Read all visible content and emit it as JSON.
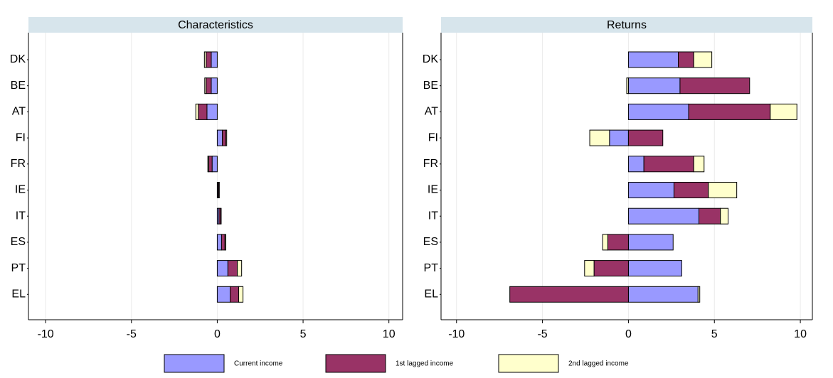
{
  "chart_data": [
    {
      "type": "bar",
      "title": "Characteristics",
      "categories": [
        "DK",
        "BE",
        "AT",
        "FI",
        "FR",
        "IE",
        "IT",
        "ES",
        "PT",
        "EL"
      ],
      "series": [
        {
          "name": "Current income",
          "color": "#9999ff",
          "values": [
            -0.35,
            -0.35,
            -0.6,
            0.3,
            -0.3,
            0.05,
            0.1,
            0.25,
            0.62,
            0.75
          ]
        },
        {
          "name": "1st lagged income",
          "color": "#993366",
          "values": [
            -0.3,
            -0.3,
            -0.5,
            0.2,
            -0.2,
            0.05,
            0.1,
            0.2,
            0.55,
            0.5
          ]
        },
        {
          "name": "2nd lagged income",
          "color": "#ffffcc",
          "values": [
            -0.1,
            -0.08,
            -0.15,
            0.05,
            -0.05,
            0.02,
            0.03,
            0.05,
            0.25,
            0.25
          ]
        }
      ],
      "xlim": [
        -11,
        10.8
      ],
      "xticks": [
        -10,
        -5,
        0,
        5,
        10
      ],
      "grid": true
    },
    {
      "type": "bar",
      "title": "Returns",
      "categories": [
        "DK",
        "BE",
        "AT",
        "FI",
        "FR",
        "IE",
        "IT",
        "ES",
        "PT",
        "EL"
      ],
      "series": [
        {
          "name": "Current income",
          "color": "#9999ff",
          "values": [
            2.9,
            3.0,
            3.5,
            -1.1,
            0.9,
            2.65,
            4.1,
            2.6,
            3.1,
            4.05
          ]
        },
        {
          "name": "1st lagged income",
          "color": "#993366",
          "values": [
            0.9,
            4.05,
            4.75,
            2.0,
            2.9,
            2.0,
            1.25,
            -1.2,
            -2.0,
            -6.9
          ]
        },
        {
          "name": "2nd lagged income",
          "color": "#ffffcc",
          "values": [
            1.05,
            -0.1,
            1.55,
            -1.15,
            0.6,
            1.65,
            0.45,
            -0.3,
            -0.55,
            0.1
          ]
        }
      ],
      "xlim": [
        -10.9,
        10.7
      ],
      "xticks": [
        -10,
        -5,
        0,
        5,
        10
      ],
      "grid": true
    }
  ]
}
